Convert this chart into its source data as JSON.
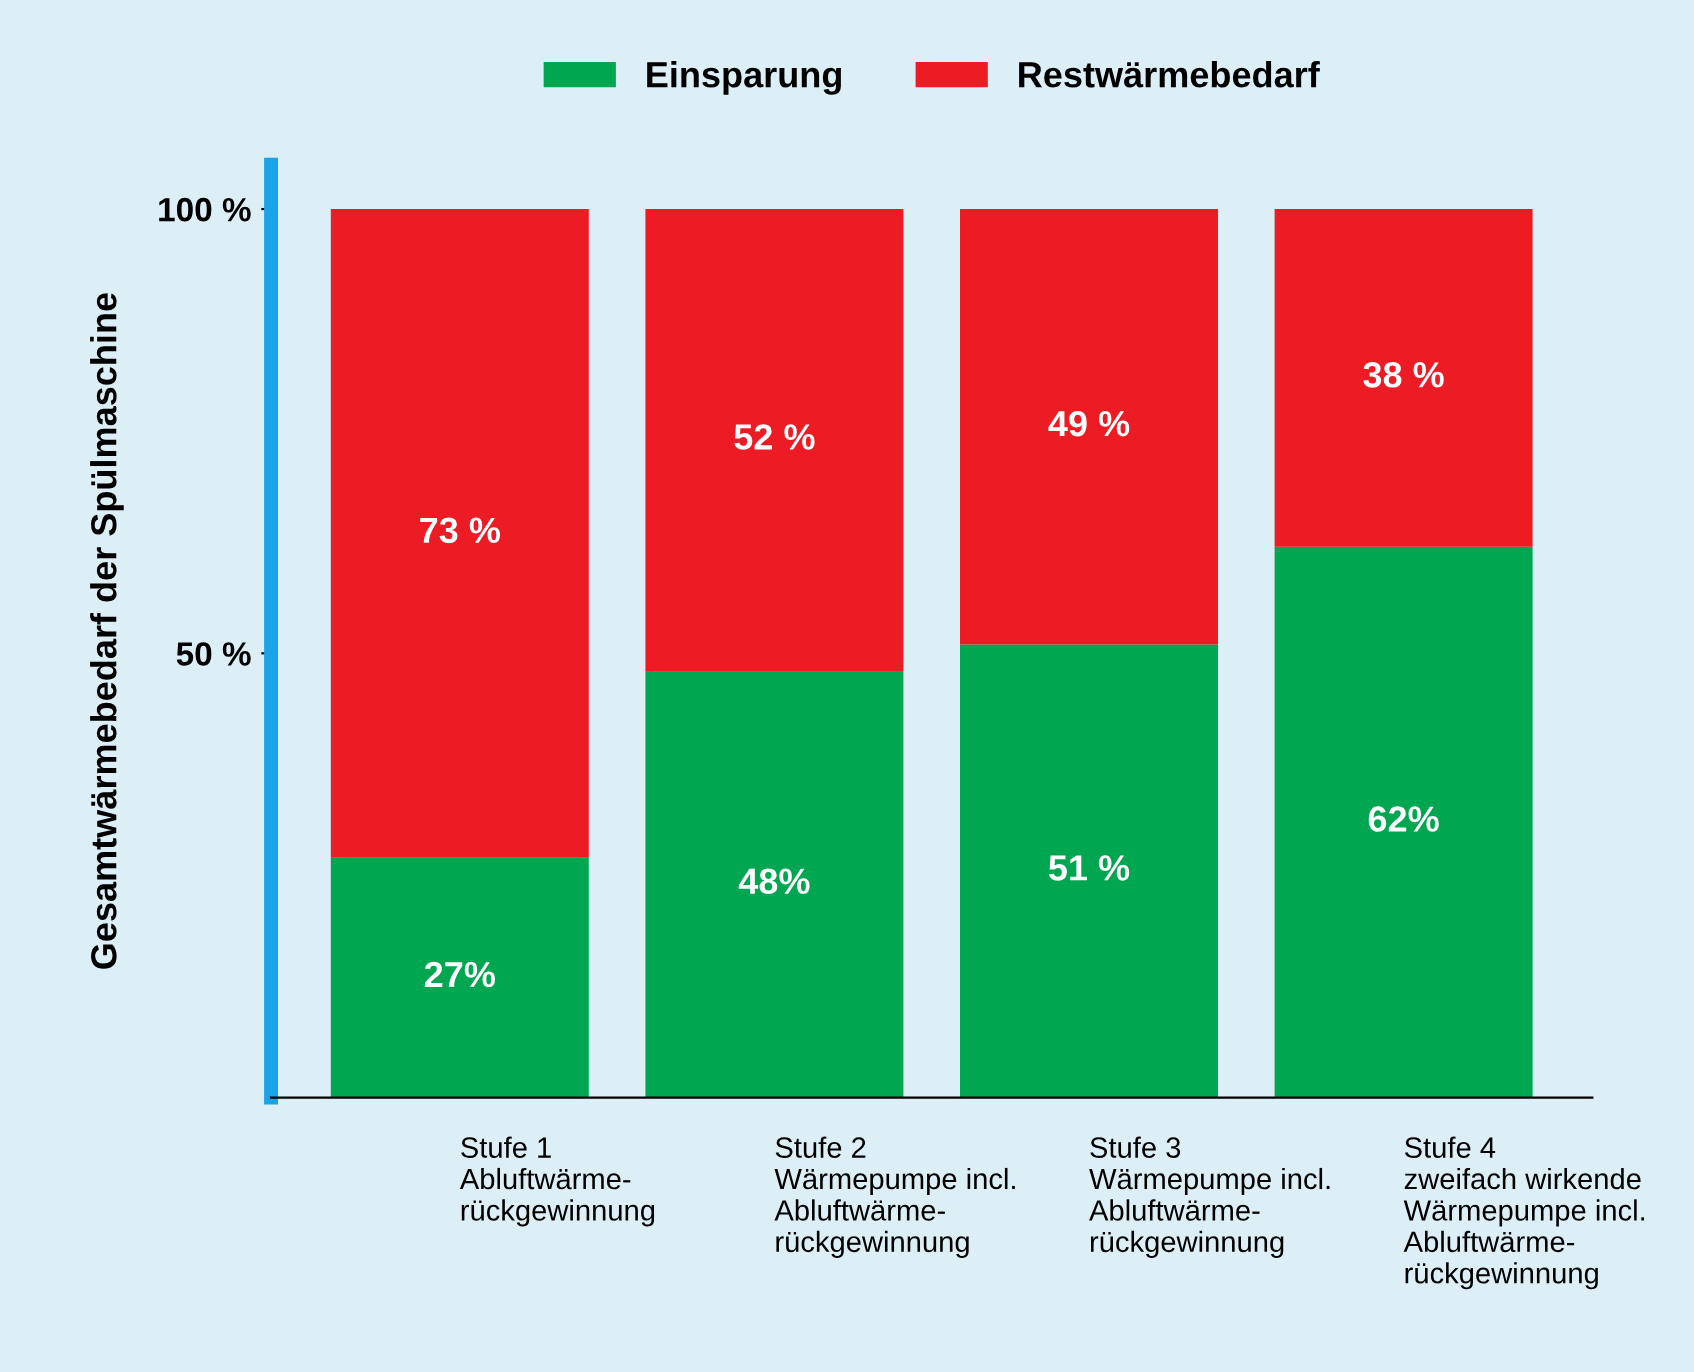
{
  "chart_data": {
    "type": "bar",
    "stacked": true,
    "ylabel": "Gesamtwärmebedarf der Spülmaschine",
    "categories": [
      "Stufe 1\nAbluftwärme-\nrückgewinnung",
      "Stufe 2\nWärmepumpe incl.\nAbluftwärme-\nrückgewinnung",
      "Stufe 3\nWärmepumpe incl.\nAbluftwärme-\nrückgewinnung",
      "Stufe 4\nzweifach wirkende\nWärmepumpe incl.\nAbluftwärme-\nrückgewinnung"
    ],
    "series": [
      {
        "name": "Einsparung",
        "color": "#00a650",
        "values": [
          27,
          48,
          51,
          62
        ],
        "value_labels": [
          "27%",
          "48%",
          "51 %",
          "62%"
        ]
      },
      {
        "name": "Restwärmebedarf",
        "color": "#ed1c24",
        "values": [
          73,
          52,
          49,
          38
        ],
        "value_labels": [
          "73 %",
          "52 %",
          "49 %",
          "38 %"
        ]
      }
    ],
    "ylim": [
      0,
      105
    ],
    "yticks": [
      {
        "value": 50,
        "label": "50 %"
      },
      {
        "value": 100,
        "label": "100 %"
      }
    ],
    "grid": false,
    "legend": "top"
  }
}
